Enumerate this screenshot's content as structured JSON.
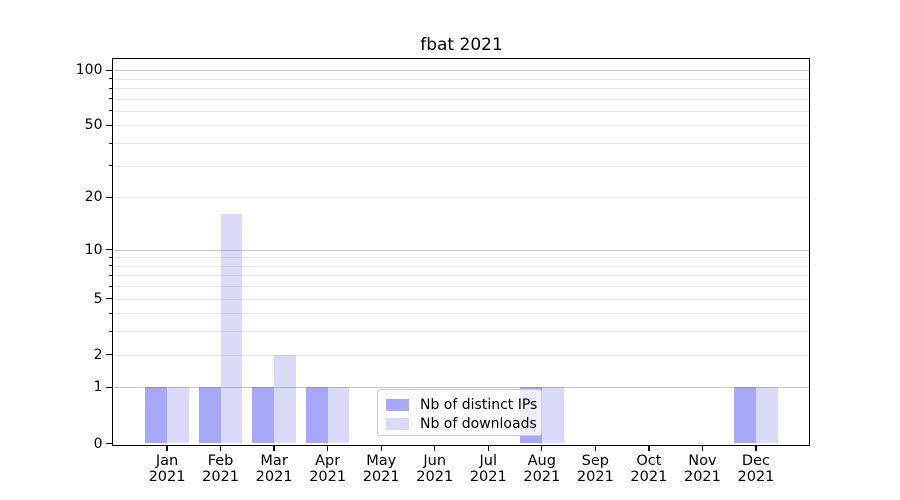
{
  "chart_data": {
    "type": "bar",
    "title": "fbat 2021",
    "x_year": "2021",
    "categories": [
      "Jan",
      "Feb",
      "Mar",
      "Apr",
      "May",
      "Jun",
      "Jul",
      "Aug",
      "Sep",
      "Oct",
      "Nov",
      "Dec"
    ],
    "series": [
      {
        "name": "Nb of distinct IPs",
        "color": "#a8a8f8",
        "values": [
          1,
          1,
          1,
          1,
          0,
          0,
          0,
          1,
          0,
          0,
          0,
          1
        ]
      },
      {
        "name": "Nb of downloads",
        "color": "#d9d9f8",
        "values": [
          1,
          16,
          2,
          1,
          0,
          0,
          0,
          1,
          0,
          0,
          0,
          1
        ]
      }
    ],
    "y_scale": "log1p",
    "ylim": [
      0,
      115
    ],
    "y_ticks": [
      0,
      1,
      2,
      5,
      10,
      20,
      50,
      100
    ],
    "y_major_gridlines": [
      1,
      10,
      100
    ],
    "y_minor_gridlines": [
      2,
      3,
      4,
      5,
      6,
      7,
      8,
      9,
      20,
      30,
      40,
      50,
      60,
      70,
      80,
      90
    ],
    "grid": true,
    "legend_position": "lower center"
  }
}
